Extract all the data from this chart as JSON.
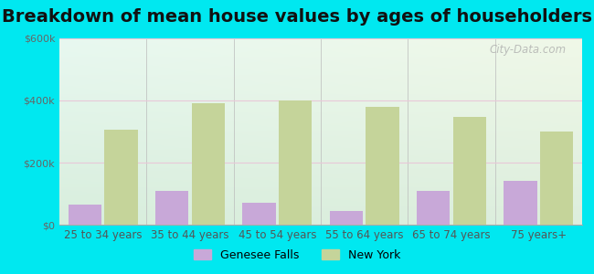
{
  "title": "Breakdown of mean house values by ages of householders",
  "categories": [
    "25 to 34 years",
    "35 to 44 years",
    "45 to 54 years",
    "55 to 64 years",
    "65 to 74 years",
    "75 years+"
  ],
  "genesee_falls": [
    65000,
    110000,
    70000,
    45000,
    110000,
    140000
  ],
  "new_york": [
    305000,
    390000,
    400000,
    380000,
    348000,
    300000
  ],
  "genesee_color": "#c8a8d8",
  "new_york_color": "#c5d49a",
  "ylim": [
    0,
    600000
  ],
  "yticks": [
    0,
    200000,
    400000,
    600000
  ],
  "ytick_labels": [
    "$0",
    "$200k",
    "$400k",
    "$600k"
  ],
  "bar_width": 0.38,
  "outer_bg": "#00e8f0",
  "legend_labels": [
    "Genesee Falls",
    "New York"
  ],
  "watermark": "City-Data.com",
  "title_fontsize": 14,
  "label_fontsize": 8.5,
  "tick_fontsize": 8
}
